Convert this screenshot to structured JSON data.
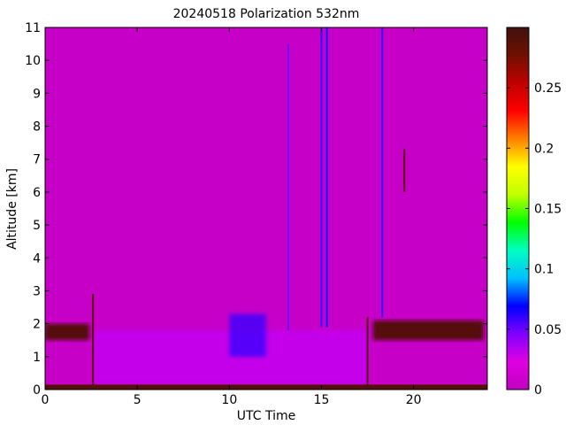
{
  "chart_data": {
    "type": "heatmap",
    "title": "20240518 Polarization 532nm",
    "xlabel": "UTC Time",
    "ylabel": "Altitude [km]",
    "xlim": [
      0,
      24
    ],
    "ylim": [
      0,
      11
    ],
    "xticks": [
      0,
      5,
      10,
      15,
      20
    ],
    "yticks": [
      0,
      1,
      2,
      3,
      4,
      5,
      6,
      7,
      8,
      9,
      10,
      11
    ],
    "colorbar": {
      "min": 0,
      "max": 0.3,
      "ticks": [
        "0",
        "0.05",
        "0.1",
        "0.15",
        "0.2",
        "0.25"
      ],
      "tick_values": [
        0,
        0.05,
        0.1,
        0.15,
        0.2,
        0.25
      ],
      "colors": [
        "#c000c0",
        "#e000e0",
        "#8000ff",
        "#0000ff",
        "#00c0ff",
        "#00ffc0",
        "#00ff00",
        "#c0ff00",
        "#ffff00",
        "#ff8000",
        "#ff0000",
        "#c00000",
        "#701000",
        "#401010"
      ]
    },
    "background_value": 0.005,
    "layers": [
      {
        "kind": "boundary_layer",
        "t0": 2.6,
        "t1": 17.6,
        "z0": 0.15,
        "z1": 1.8,
        "value": 0.03
      },
      {
        "kind": "aerosol_top",
        "t0": 0,
        "t1": 2.4,
        "z0": 1.5,
        "z1": 2.0,
        "value": 0.29
      },
      {
        "kind": "aerosol_top",
        "t0": 17.8,
        "t1": 23.8,
        "z0": 1.5,
        "z1": 2.1,
        "value": 0.29
      },
      {
        "kind": "enhanced",
        "t0": 10.0,
        "t1": 12.0,
        "z0": 1.0,
        "z1": 2.3,
        "value": 0.06
      },
      {
        "kind": "surface",
        "t0": 0,
        "t1": 24,
        "z0": 0,
        "z1": 0.15,
        "value": 0.29
      }
    ],
    "streaks": [
      {
        "t": 2.6,
        "z0": 0,
        "z1": 2.9,
        "value": 0.29
      },
      {
        "t": 13.2,
        "z0": 1.8,
        "z1": 10.5,
        "value": 0.05
      },
      {
        "t": 15.0,
        "z0": 1.9,
        "z1": 11,
        "value": 0.06
      },
      {
        "t": 15.3,
        "z0": 1.9,
        "z1": 11,
        "value": 0.07
      },
      {
        "t": 17.5,
        "z0": 0,
        "z1": 2.2,
        "value": 0.29
      },
      {
        "t": 18.3,
        "z0": 2.2,
        "z1": 11,
        "value": 0.06
      },
      {
        "t": 19.5,
        "z0": 6.0,
        "z1": 7.3,
        "value": 0.29
      }
    ]
  }
}
